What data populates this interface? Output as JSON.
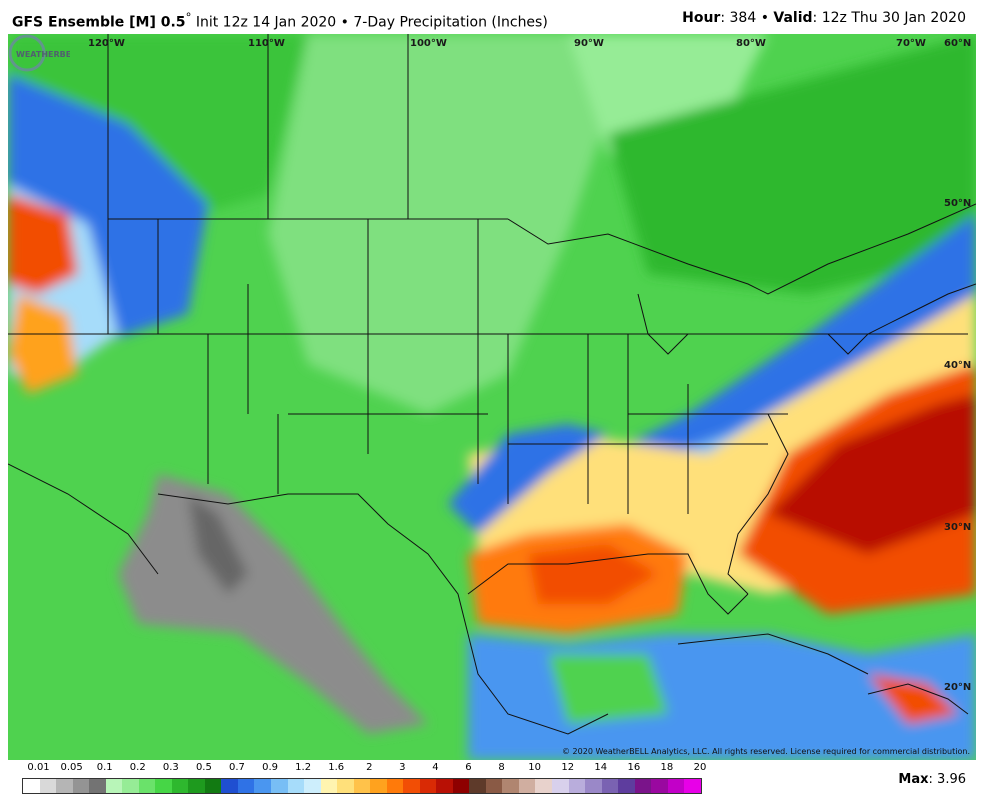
{
  "header": {
    "model": "GFS Ensemble [M] 0.5",
    "degree": "°",
    "init": "Init 12z 14 Jan 2020",
    "bullet": "•",
    "product": "7-Day Precipitation (Inches)",
    "hour_label": "Hour",
    "hour_value": ": 384",
    "valid_label": "Valid",
    "valid_value": ": 12z Thu 30 Jan 2020"
  },
  "map": {
    "longitude_labels": [
      "120°W",
      "110°W",
      "100°W",
      "90°W",
      "80°W",
      "70°W"
    ],
    "latitude_labels": [
      "60°N",
      "50°N",
      "40°N",
      "30°N",
      "20°N"
    ],
    "credit": "© 2020 WeatherBELL Analytics, LLC. All rights reserved. License required for commercial distribution.",
    "logo_text": "WEATHERBELL"
  },
  "legend": {
    "tick_labels": [
      "0.01",
      "0.05",
      "0.1",
      "0.2",
      "0.3",
      "0.5",
      "0.7",
      "0.9",
      "1.2",
      "1.6",
      "2",
      "3",
      "4",
      "6",
      "8",
      "10",
      "12",
      "14",
      "16",
      "18",
      "20"
    ],
    "colors": [
      "#ffffff",
      "#d9d9d9",
      "#b5b5b5",
      "#949494",
      "#737373",
      "#b8f5b8",
      "#96ec96",
      "#6ae26a",
      "#46d646",
      "#2eb82e",
      "#1e9a1e",
      "#127a12",
      "#1f4fd1",
      "#2f72e6",
      "#4a96f0",
      "#78bef5",
      "#a6dcfa",
      "#cdeefc",
      "#fff4b0",
      "#ffe07a",
      "#ffc24a",
      "#ffa21e",
      "#ff7a0a",
      "#f24e05",
      "#d92a05",
      "#b81005",
      "#8e0000",
      "#5e3a2a",
      "#8a5a45",
      "#b08570",
      "#d0aea0",
      "#e8d2cc",
      "#d8d0ec",
      "#b9addc",
      "#9a88c8",
      "#7a62b2",
      "#5e3d9e",
      "#7a148a",
      "#9a08a0",
      "#c200c8",
      "#e800e8"
    ],
    "max_label": "Max",
    "max_value": ": 3.96"
  }
}
